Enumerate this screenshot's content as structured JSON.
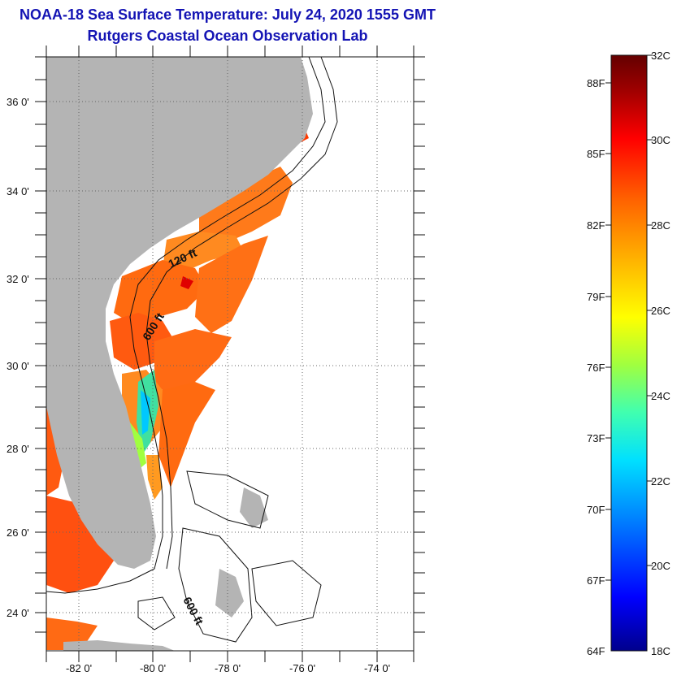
{
  "title": "NOAA-18 Sea Surface Temperature:  July 24, 2020 1555 GMT",
  "subtitle": "Rutgers Coastal Ocean Observation Lab",
  "map": {
    "lat_labels": [
      "36 0'",
      "34 0'",
      "32 0'",
      "30 0'",
      "28 0'",
      "26 0'",
      "24 0'"
    ],
    "lon_labels": [
      "-82 0'",
      "-80 0'",
      "-78 0'",
      "-76 0'",
      "-74 0'"
    ],
    "land_color": "#b4b4b4",
    "contour_labels": [
      "120 ft",
      "600 ft",
      "600 ft"
    ]
  },
  "colorbar": {
    "fahrenheit_labels": [
      "88F",
      "85F",
      "82F",
      "79F",
      "76F",
      "73F",
      "70F",
      "67F",
      "64F"
    ],
    "celsius_labels": [
      "32C",
      "30C",
      "28C",
      "26C",
      "24C",
      "22C",
      "20C",
      "18C"
    ],
    "range_c": [
      18,
      32
    ],
    "colors": [
      "#00008c",
      "#0000ff",
      "#0080ff",
      "#00e0ff",
      "#40ffb0",
      "#a0ff40",
      "#ffff00",
      "#ffb000",
      "#ff6000",
      "#ff0000",
      "#a00000",
      "#640000"
    ]
  }
}
